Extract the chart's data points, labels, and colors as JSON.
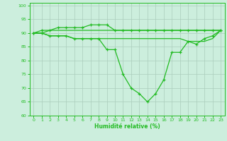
{
  "x": [
    0,
    1,
    2,
    3,
    4,
    5,
    6,
    7,
    8,
    9,
    10,
    11,
    12,
    13,
    14,
    15,
    16,
    17,
    18,
    19,
    20,
    21,
    22,
    23
  ],
  "line_top_marked": [
    90,
    91,
    91,
    92,
    92,
    92,
    92,
    93,
    93,
    93,
    91,
    91,
    91,
    91,
    91,
    91,
    91,
    91,
    91,
    91,
    91,
    91,
    91,
    91
  ],
  "line_top_flat": [
    90,
    90,
    91,
    91,
    91,
    91,
    91,
    91,
    91,
    91,
    91,
    91,
    91,
    91,
    91,
    91,
    91,
    91,
    91,
    91,
    91,
    91,
    91,
    91
  ],
  "line_mid_plain": [
    90,
    90,
    89,
    89,
    89,
    88,
    88,
    88,
    88,
    88,
    88,
    88,
    88,
    88,
    88,
    88,
    88,
    88,
    88,
    87,
    87,
    87,
    88,
    91
  ],
  "line_drop_marked": [
    90,
    90,
    89,
    89,
    89,
    88,
    88,
    88,
    88,
    84,
    84,
    75,
    70,
    68,
    65,
    68,
    73,
    83,
    83,
    87,
    86,
    88,
    89,
    91
  ],
  "background_color": "#cceedd",
  "grid_color": "#aaccbb",
  "line_color": "#22bb22",
  "xlabel": "Humidité relative (%)",
  "ylim": [
    60,
    101
  ],
  "xlim": [
    -0.5,
    23.5
  ],
  "yticks": [
    60,
    65,
    70,
    75,
    80,
    85,
    90,
    95,
    100
  ],
  "xticks": [
    0,
    1,
    2,
    3,
    4,
    5,
    6,
    7,
    8,
    9,
    10,
    11,
    12,
    13,
    14,
    15,
    16,
    17,
    18,
    19,
    20,
    21,
    22,
    23
  ]
}
